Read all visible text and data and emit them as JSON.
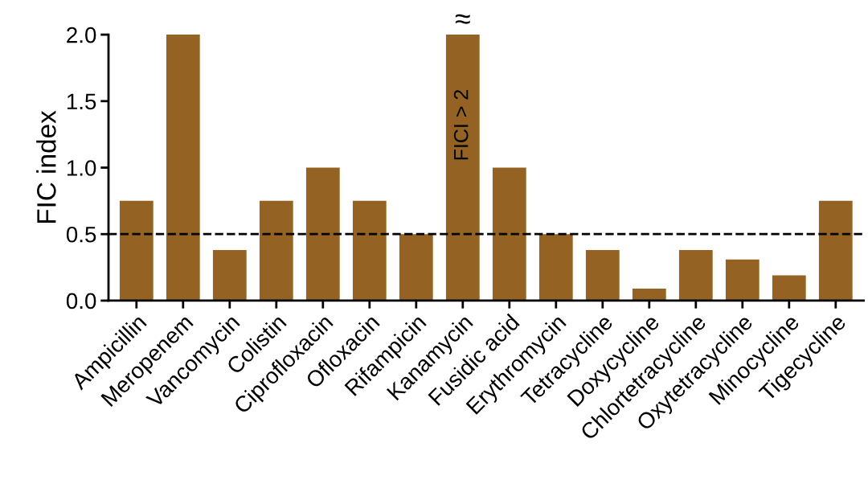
{
  "chart_data": {
    "type": "bar",
    "ylabel": "FIC index",
    "categories": [
      "Ampicillin",
      "Meropenem",
      "Vancomycin",
      "Colistin",
      "Ciprofloxacin",
      "Ofloxacin",
      "Rifampicin",
      "Kanamycin",
      "Fusidic acid",
      "Erythromycin",
      "Tetracycline",
      "Doxycycline",
      "Chlortetracycline",
      "Oxytetracycline",
      "Minocycline",
      "Tigecycline"
    ],
    "values": [
      0.75,
      2.0,
      0.38,
      0.75,
      1.0,
      0.75,
      0.5,
      2.0,
      1.0,
      0.5,
      0.38,
      0.09,
      0.38,
      0.31,
      0.19,
      0.75
    ],
    "color": "#946323",
    "ylim": [
      0,
      2.0
    ],
    "yticks": [
      {
        "value": 0,
        "label": "0.0"
      },
      0.5,
      {
        "value": 1,
        "label": "1.0"
      },
      1.5,
      {
        "value": 2,
        "label": "2.0"
      }
    ],
    "ref_lines": [
      {
        "axis": "y",
        "value": 0.5,
        "color": "#000000",
        "line_style": "dashed"
      }
    ],
    "annotations": [
      "FICI > 2",
      {
        "text": "≈",
        "x": "Kanamycin",
        "y": 2.0
      }
    ],
    "grid": false,
    "legend": false
  }
}
